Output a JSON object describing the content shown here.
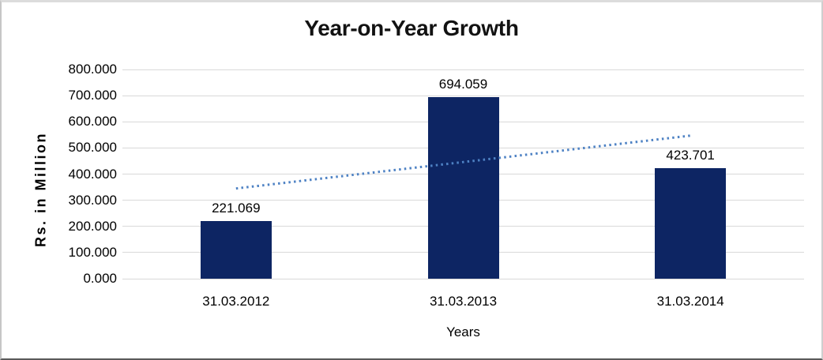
{
  "chart_data": {
    "type": "bar",
    "title": "Year-on-Year Growth",
    "xlabel": "Years",
    "ylabel": "Rs. in Million",
    "categories": [
      "31.03.2012",
      "31.03.2013",
      "31.03.2014"
    ],
    "values": [
      221.069,
      694.059,
      423.701
    ],
    "value_labels": [
      "221.069",
      "694.059",
      "423.701"
    ],
    "ylim": [
      0,
      800
    ],
    "ytick_step": 100,
    "ytick_labels": [
      "0.000",
      "100.000",
      "200.000",
      "300.000",
      "400.000",
      "500.000",
      "600.000",
      "700.000",
      "800.000"
    ],
    "grid": true,
    "legend": "none",
    "bar_color": "#0d2563",
    "gridline_color": "#d9d9d9",
    "trendline": {
      "type": "linear",
      "style": "dotted",
      "color": "#4e82c4",
      "start_value": 345,
      "end_value": 547
    }
  }
}
